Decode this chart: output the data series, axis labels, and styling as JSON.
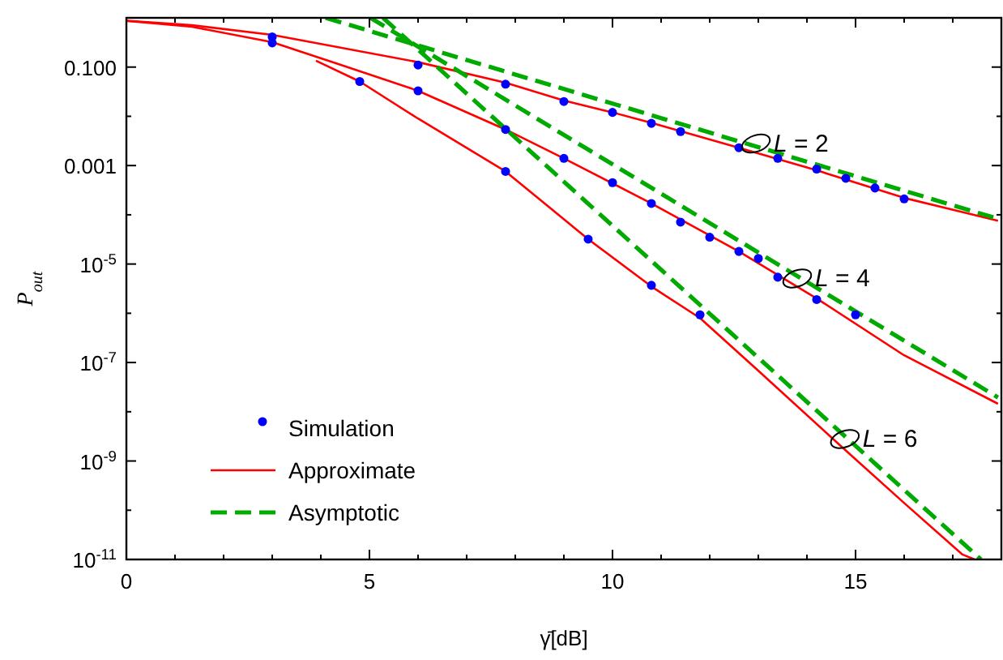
{
  "chart_data": {
    "type": "line",
    "xlabel": "γ̄[dB]",
    "ylabel": "P$_{out}$",
    "log": "y",
    "grid": false,
    "legend": "bottom left",
    "xlim": [
      0,
      18
    ],
    "xticks": [
      0,
      {
        "value": 1,
        "label": null
      },
      {
        "value": 2,
        "label": null
      },
      {
        "value": 3,
        "label": null
      },
      {
        "value": 4,
        "label": null
      },
      5,
      {
        "value": 6,
        "label": null
      },
      {
        "value": 7,
        "label": null
      },
      {
        "value": 8,
        "label": null
      },
      {
        "value": 9,
        "label": null
      },
      10,
      {
        "value": 11,
        "label": null
      },
      {
        "value": 12,
        "label": null
      },
      {
        "value": 13,
        "label": null
      },
      {
        "value": 14,
        "label": null
      },
      15,
      {
        "value": 16,
        "label": null
      },
      {
        "value": 17,
        "label": null
      }
    ],
    "ylim": [
      1e-11,
      1
    ],
    "yticks": [
      {
        "value": 1e-11,
        "label": "10$^{-11}$"
      },
      {
        "value": 1e-10,
        "label": null
      },
      {
        "value": 1e-09,
        "label": "10$^{-9}$"
      },
      {
        "value": 1e-08,
        "label": null
      },
      {
        "value": 1e-07,
        "label": "10$^{-7}$"
      },
      {
        "value": 1e-06,
        "label": null
      },
      {
        "value": 1e-05,
        "label": "10$^{-5}$"
      },
      {
        "value": 0.0001,
        "label": null
      },
      {
        "value": 0.001,
        "label": "0.001"
      },
      {
        "value": 0.01,
        "label": null
      },
      {
        "value": 0.1,
        "label": "0.100"
      }
    ],
    "series": [
      {
        "name": "Simulation",
        "type": "scatter",
        "marker": "circle",
        "color": "#0000ff",
        "x": [
          3,
          6,
          7.8,
          9,
          10,
          10.8,
          11.4,
          12.6,
          13.4,
          14.2,
          14.8,
          15.4,
          16
        ],
        "values": [
          0.41,
          0.11,
          0.045,
          0.02,
          0.012,
          0.0072,
          0.0049,
          0.0023,
          0.0014,
          0.00085,
          0.00055,
          0.00035,
          0.00021
        ]
      },
      {
        "type": "scatter",
        "marker": "circle",
        "color": "#0000ff",
        "x": [
          3,
          6,
          7.8,
          9,
          10,
          10.8,
          11.4,
          12,
          12.6,
          13,
          13.4,
          14.2,
          15
        ],
        "values": [
          0.31,
          0.033,
          0.0054,
          0.0014,
          0.00045,
          0.00017,
          7.1e-05,
          3.5e-05,
          1.8e-05,
          1.3e-05,
          5.4e-06,
          1.9e-06,
          9.3e-07
        ]
      },
      {
        "type": "scatter",
        "marker": "circle",
        "color": "#0000ff",
        "x": [
          4.8,
          7.8,
          9.5,
          10.8,
          11.8
        ],
        "values": [
          0.051,
          0.00076,
          3.2e-05,
          3.7e-06,
          9.3e-07
        ]
      },
      {
        "name": "Approximate",
        "line_style": "solid",
        "color": "#ff0000",
        "x": [
          0,
          1.35,
          3,
          6,
          7.8,
          9,
          10,
          10.8,
          12.6,
          14.2,
          16,
          17.93
        ],
        "values": [
          0.87,
          0.71,
          0.45,
          0.126,
          0.048,
          0.021,
          0.012,
          0.0074,
          0.0023,
          0.0008,
          0.00022,
          7.6e-05
        ]
      },
      {
        "line_style": "solid",
        "color": "#ff0000",
        "x": [
          0,
          1.35,
          3,
          4.36,
          6,
          7.8,
          9,
          10.8,
          12.6,
          14.2,
          16,
          17.93
        ],
        "values": [
          0.87,
          0.66,
          0.32,
          0.115,
          0.033,
          0.0054,
          0.0014,
          0.00017,
          1.8e-05,
          2e-06,
          1.4e-07,
          1.45e-08
        ]
      },
      {
        "line_style": "solid",
        "color": "#ff0000",
        "x": [
          3.9,
          4.8,
          6,
          7.8,
          9.5,
          10.8,
          11.8,
          13,
          14.7,
          16,
          17.2,
          17.45
        ],
        "values": [
          0.135,
          0.051,
          0.009,
          0.00076,
          3.2e-05,
          3.5e-06,
          8e-07,
          6.8e-08,
          2e-09,
          1.4e-10,
          1.26e-11,
          1e-11
        ]
      },
      {
        "name": "Asymptotic",
        "line_style": "dashed",
        "color": "#00aa00",
        "x": [
          4.1,
          17.93
        ],
        "values": [
          1,
          8.3e-05
        ]
      },
      {
        "line_style": "dashed",
        "color": "#00aa00",
        "x": [
          5.02,
          17.93
        ],
        "values": [
          1,
          1.95e-08
        ]
      },
      {
        "line_style": "dashed",
        "color": "#00aa00",
        "x": [
          5.28,
          17.58
        ],
        "values": [
          1,
          1e-11
        ]
      }
    ],
    "annotations": [
      {
        "text": "L = 2",
        "x": 12.95,
        "y": 0.0028
      },
      {
        "text": "L = 4",
        "x": 13.8,
        "y": 5.1e-06
      },
      {
        "text": "L = 6",
        "x": 14.78,
        "y": 2.8e-09
      }
    ]
  }
}
